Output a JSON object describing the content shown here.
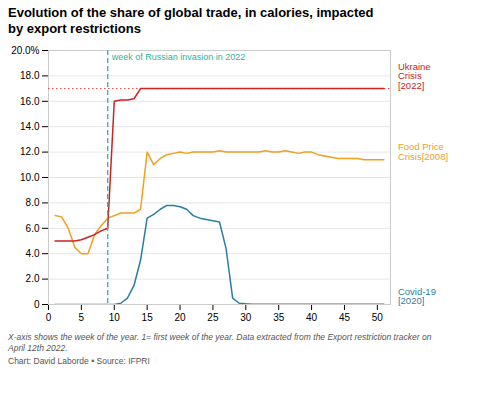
{
  "chart_data": {
    "type": "line",
    "title": "Evolution of the share of global trade, in calories, impacted\nby export restrictions",
    "x": [
      1,
      2,
      3,
      4,
      5,
      6,
      7,
      8,
      9,
      10,
      11,
      12,
      13,
      14,
      15,
      16,
      17,
      18,
      19,
      20,
      21,
      22,
      23,
      24,
      25,
      26,
      27,
      28,
      29,
      30,
      31,
      32,
      33,
      34,
      35,
      36,
      37,
      38,
      39,
      40,
      41,
      42,
      43,
      44,
      45,
      46,
      47,
      48,
      49,
      50,
      51
    ],
    "series": [
      {
        "name": "Ukraine\nCrisis\n[2022]",
        "color": "#cc2222",
        "values": [
          5.0,
          5.0,
          5.0,
          5.0,
          5.1,
          5.3,
          5.5,
          5.8,
          6.0,
          16.0,
          16.1,
          16.1,
          16.2,
          17.0,
          17.0,
          17.0,
          17.0,
          17.0,
          17.0,
          17.0,
          17.0,
          17.0,
          17.0,
          17.0,
          17.0,
          17.0,
          17.0,
          17.0,
          17.0,
          17.0,
          17.0,
          17.0,
          17.0,
          17.0,
          17.0,
          17.0,
          17.0,
          17.0,
          17.0,
          17.0,
          17.0,
          17.0,
          17.0,
          17.0,
          17.0,
          17.0,
          17.0,
          17.0,
          17.0,
          17.0,
          17.0
        ]
      },
      {
        "name": "Food Price\nCrisis[2008]",
        "color": "#f0a020",
        "values": [
          7.0,
          6.9,
          6.0,
          4.5,
          4.0,
          4.0,
          5.5,
          6.2,
          6.8,
          7.0,
          7.2,
          7.2,
          7.2,
          7.5,
          12.0,
          11.0,
          11.5,
          11.8,
          11.9,
          12.0,
          11.9,
          12.0,
          12.0,
          12.0,
          12.0,
          12.1,
          12.0,
          12.0,
          12.0,
          12.0,
          12.0,
          12.0,
          12.1,
          12.0,
          12.0,
          12.1,
          12.0,
          11.9,
          12.0,
          12.0,
          11.8,
          11.7,
          11.6,
          11.5,
          11.5,
          11.5,
          11.5,
          11.4,
          11.4,
          11.4,
          11.4
        ]
      },
      {
        "name": "Covid-19\n[2020]",
        "color": "#2a7fa0",
        "values": [
          0.0,
          0.0,
          0.0,
          0.0,
          0.0,
          0.0,
          0.0,
          0.0,
          0.0,
          0.0,
          0.1,
          0.5,
          1.5,
          3.5,
          6.8,
          7.1,
          7.5,
          7.8,
          7.8,
          7.7,
          7.5,
          7.0,
          6.8,
          6.7,
          6.6,
          6.5,
          4.4,
          0.5,
          0.1,
          0.05,
          0.02,
          0.01,
          0.01,
          0.01,
          0.01,
          0.01,
          0.01,
          0.01,
          0.01,
          0.01,
          0.01,
          0.01,
          0.01,
          0.01,
          0.01,
          0.01,
          0.01,
          0.01,
          0.01,
          0.01,
          0.01
        ]
      }
    ],
    "xlim": [
      0,
      52
    ],
    "ylim": [
      0,
      20.0
    ],
    "xticks": [
      0,
      5,
      10,
      15,
      20,
      25,
      30,
      35,
      40,
      45,
      50
    ],
    "yticks": [
      0,
      {
        "value": 2.0,
        "label": "2.0"
      },
      {
        "value": 4.0,
        "label": "4.0"
      },
      {
        "value": 6.0,
        "label": "6.0"
      },
      {
        "value": 8.0,
        "label": "8.0"
      },
      {
        "value": 10.0,
        "label": "10.0"
      },
      {
        "value": 12.0,
        "label": "12.0"
      },
      {
        "value": 14.0,
        "label": "14.0"
      },
      {
        "value": 16.0,
        "label": "16.0"
      },
      {
        "value": 18.0,
        "label": "18.0"
      },
      {
        "value": 20.0,
        "label": "20.0%"
      }
    ],
    "grid": "y",
    "vlines": [
      {
        "x": 9,
        "label": "week of Russian invasion in 2022",
        "color": "#2ab5a0",
        "line_style": "dashed"
      }
    ],
    "hlines": [
      {
        "y": 17.0,
        "color": "#e84040",
        "line_style": "dotted"
      }
    ],
    "caption": "X-axis shows the week of the year. 1= first week of the year. Data extracted from the Export restriction tracker on\nApril 12th 2022.",
    "source": "Chart: David Laborde • Source: IFPRI"
  }
}
